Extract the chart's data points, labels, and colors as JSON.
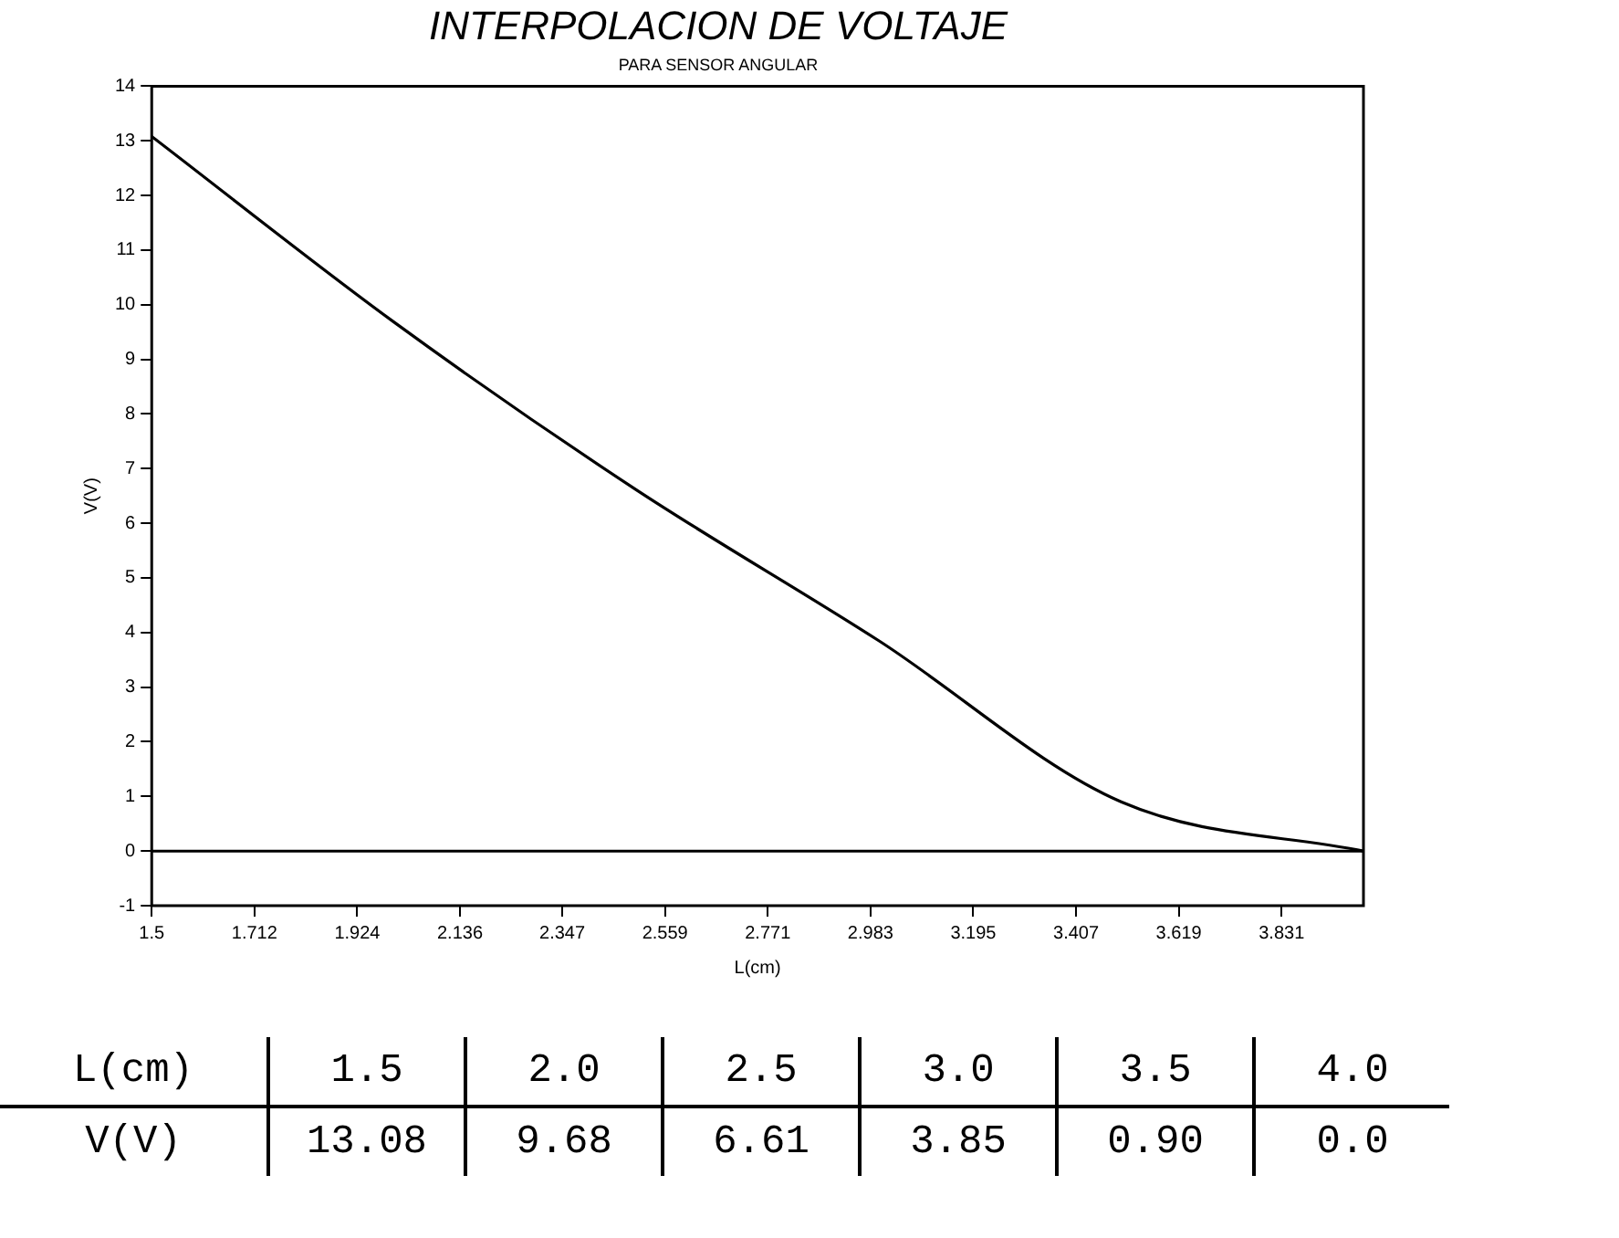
{
  "chart_data": {
    "type": "line",
    "title": "INTERPOLACION DE VOLTAJE",
    "subtitle": "PARA SENSOR ANGULAR",
    "xlabel": "L(cm)",
    "ylabel": "V(V)",
    "x": [
      1.5,
      2.0,
      2.5,
      3.0,
      3.5,
      4.0
    ],
    "series": [
      {
        "color": "#000000",
        "values": [
          13.08,
          9.68,
          6.61,
          3.85,
          0.9,
          0.0
        ]
      }
    ],
    "annotations": [
      "1.5",
      "2.0",
      "2.5",
      "3.0",
      "3.5",
      "4.0",
      "13.08",
      "9.68",
      "6.61",
      "3.85",
      "0.90",
      "0.0"
    ],
    "xlim": [
      1.5,
      4.0
    ],
    "xticks": [
      1.5,
      1.712,
      1.924,
      2.136,
      2.347,
      2.559,
      2.771,
      2.983,
      3.195,
      3.407,
      3.619,
      3.831
    ],
    "ylim": [
      -1,
      14
    ],
    "yticks": [
      -1,
      0,
      1,
      2,
      3,
      4,
      5,
      6,
      7,
      8,
      9,
      10,
      11,
      12,
      13,
      14
    ],
    "ref_lines": [
      {
        "axis": "y",
        "value": 0,
        "color": "#000000"
      }
    ],
    "grid": false,
    "legend": false,
    "marker": "none",
    "line_style": "solid"
  }
}
